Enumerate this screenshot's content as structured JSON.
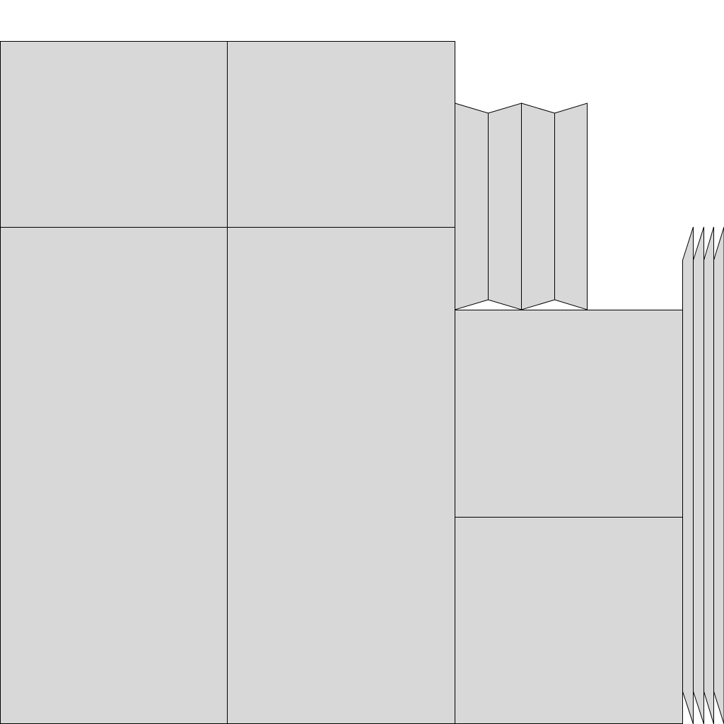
{
  "diagram": {
    "type": "folded-panel-layout",
    "colors": {
      "fill": "#d8d8d8",
      "stroke": "#000000",
      "background": "#ffffff"
    },
    "groups": [
      {
        "name": "rectangular-panels",
        "count": 6
      },
      {
        "name": "zigzag-folded-strips",
        "count": 4
      },
      {
        "name": "slanted-edge-strips",
        "count": 4
      }
    ]
  }
}
